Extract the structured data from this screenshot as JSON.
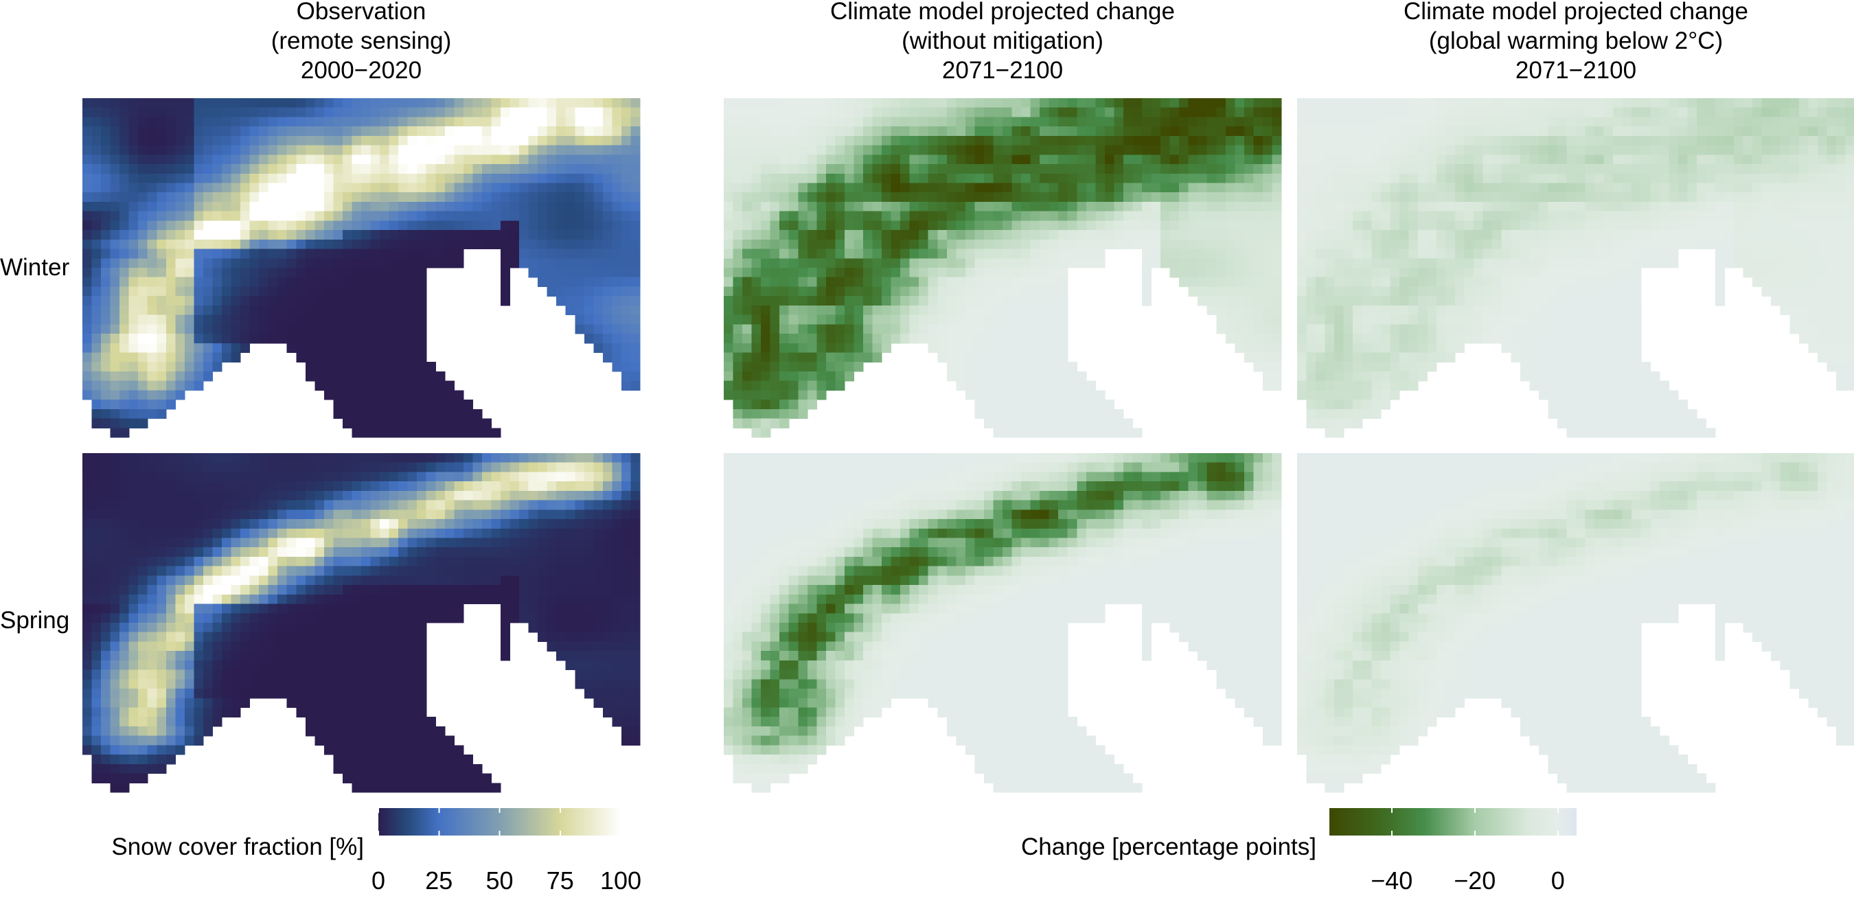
{
  "chart_data": {
    "type": "heatmap",
    "columns": [
      {
        "title_lines": [
          "Observation",
          "(remote sensing)",
          "2000−2020"
        ],
        "field": "snow_cover",
        "scale": "snow"
      },
      {
        "title_lines": [
          "Climate model projected change",
          "(without mitigation)",
          "2071−2100"
        ],
        "field": "change",
        "scale": "change",
        "intensity": 1.0
      },
      {
        "title_lines": [
          "Climate model projected change",
          "(global warming below 2°C)",
          "2071−2100"
        ],
        "field": "change",
        "scale": "change",
        "intensity": 0.3
      }
    ],
    "rows": [
      "Winter",
      "Spring"
    ],
    "colorbars": {
      "snow": {
        "label": "Snow cover fraction [%]",
        "range": [
          0,
          100
        ],
        "ticks": [
          "0",
          "25",
          "50",
          "75",
          "100"
        ],
        "tick_values": [
          0,
          25,
          50,
          75,
          100
        ],
        "stops": [
          [
            0,
            "#2c1d4f"
          ],
          [
            12,
            "#274a7c"
          ],
          [
            25,
            "#4472c4"
          ],
          [
            50,
            "#819fb1"
          ],
          [
            75,
            "#d6d79a"
          ],
          [
            100,
            "#ffffff"
          ]
        ]
      },
      "change": {
        "label": "Change [percentage points]",
        "range": [
          -55,
          4.5
        ],
        "ticks": [
          "−40",
          "−20",
          "0"
        ],
        "tick_values": [
          -40,
          -20,
          0
        ],
        "stops": [
          [
            -55,
            "#3e4800"
          ],
          [
            -42,
            "#3f6b22"
          ],
          [
            -32,
            "#478e4c"
          ],
          [
            -20,
            "#a6cba7"
          ],
          [
            -7,
            "#dbe9dd"
          ],
          [
            0,
            "#e5ede9"
          ],
          [
            4.5,
            "#dce6f0"
          ]
        ]
      }
    },
    "missing_color": "#ffffff"
  }
}
